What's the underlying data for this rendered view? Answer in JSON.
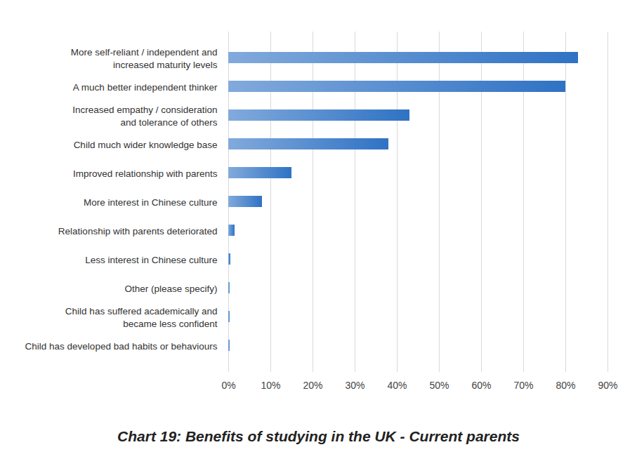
{
  "chart_data": {
    "type": "bar",
    "title": "Chart 19: Benefits of studying in the UK - Current parents",
    "orientation": "horizontal",
    "categories": [
      "More self-reliant / independent and\nincreased maturity levels",
      "A much better independent thinker",
      "Increased empathy / consideration\nand tolerance of others",
      "Child much wider knowledge base",
      "Improved relationship with parents",
      "More interest in Chinese culture",
      "Relationship with parents deteriorated",
      "Less interest in Chinese culture",
      "Other (please specify)",
      "Child has suffered academically and\nbecame less confident",
      "Child has developed bad habits or behaviours"
    ],
    "values": [
      83,
      80,
      43,
      38,
      15,
      8,
      1.5,
      0.5,
      0.3,
      0.3,
      0.3
    ],
    "color": "#2f72c4",
    "xlim": [
      0,
      90
    ],
    "xticks": [
      {
        "value": 0,
        "label": "0%"
      },
      {
        "value": 10,
        "label": "10%"
      },
      {
        "value": 20,
        "label": "20%"
      },
      {
        "value": 30,
        "label": "30%"
      },
      {
        "value": 40,
        "label": "40%"
      },
      {
        "value": 50,
        "label": "50%"
      },
      {
        "value": 60,
        "label": "60%"
      },
      {
        "value": 70,
        "label": "70%"
      },
      {
        "value": 80,
        "label": "80%"
      },
      {
        "value": 90,
        "label": "90%"
      }
    ],
    "grid": true,
    "data_labels": false
  }
}
